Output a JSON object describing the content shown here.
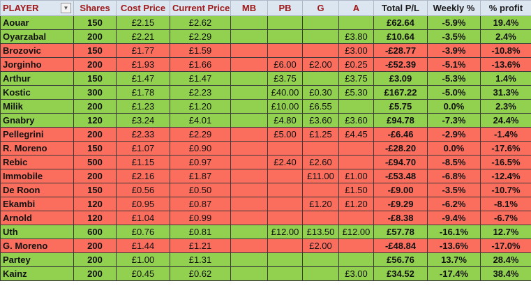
{
  "headers": [
    "PLAYER",
    "Shares",
    "Cost Price",
    "Current Price",
    "MB",
    "PB",
    "G",
    "A",
    "Total P/L",
    "Weekly %",
    "% profit"
  ],
  "colors": {
    "profit": "#92d050",
    "loss": "#fb6e5e",
    "header": "#dce6f1"
  },
  "rows": [
    [
      "Aouar",
      "150",
      "£2.15",
      "£2.62",
      "",
      "",
      "",
      "",
      "£62.64",
      "-5.9%",
      "19.4%",
      "green"
    ],
    [
      "Oyarzabal",
      "200",
      "£2.21",
      "£2.29",
      "",
      "",
      "",
      "£3.80",
      "£10.64",
      "-3.5%",
      "2.4%",
      "green"
    ],
    [
      "Brozovic",
      "150",
      "£1.77",
      "£1.59",
      "",
      "",
      "",
      "£3.00",
      "-£28.77",
      "-3.9%",
      "-10.8%",
      "red"
    ],
    [
      "Jorginho",
      "200",
      "£1.93",
      "£1.66",
      "",
      "£6.00",
      "£2.00",
      "£0.25",
      "-£52.39",
      "-5.1%",
      "-13.6%",
      "red"
    ],
    [
      "Arthur",
      "150",
      "£1.47",
      "£1.47",
      "",
      "£3.75",
      "",
      "£3.75",
      "£3.09",
      "-5.3%",
      "1.4%",
      "green"
    ],
    [
      "Kostic",
      "300",
      "£1.78",
      "£2.23",
      "",
      "£40.00",
      "£0.30",
      "£5.30",
      "£167.22",
      "-5.0%",
      "31.3%",
      "green"
    ],
    [
      "Milik",
      "200",
      "£1.23",
      "£1.20",
      "",
      "£10.00",
      "£6.55",
      "",
      "£5.75",
      "0.0%",
      "2.3%",
      "green"
    ],
    [
      "Gnabry",
      "120",
      "£3.24",
      "£4.01",
      "",
      "£4.80",
      "£3.60",
      "£3.60",
      "£94.78",
      "-7.3%",
      "24.4%",
      "green"
    ],
    [
      "Pellegrini",
      "200",
      "£2.33",
      "£2.29",
      "",
      "£5.00",
      "£1.25",
      "£4.45",
      "-£6.46",
      "-2.9%",
      "-1.4%",
      "red"
    ],
    [
      "R. Moreno",
      "150",
      "£1.07",
      "£0.90",
      "",
      "",
      "",
      "",
      "-£28.20",
      "0.0%",
      "-17.6%",
      "red"
    ],
    [
      "Rebic",
      "500",
      "£1.15",
      "£0.97",
      "",
      "£2.40",
      "£2.60",
      "",
      "-£94.70",
      "-8.5%",
      "-16.5%",
      "red"
    ],
    [
      "Immobile",
      "200",
      "£2.16",
      "£1.87",
      "",
      "",
      "£11.00",
      "£1.00",
      "-£53.48",
      "-6.8%",
      "-12.4%",
      "red"
    ],
    [
      "De Roon",
      "150",
      "£0.56",
      "£0.50",
      "",
      "",
      "",
      "£1.50",
      "-£9.00",
      "-3.5%",
      "-10.7%",
      "red"
    ],
    [
      "Ekambi",
      "120",
      "£0.95",
      "£0.87",
      "",
      "",
      "£1.20",
      "£1.20",
      "-£9.29",
      "-6.2%",
      "-8.1%",
      "red"
    ],
    [
      "Arnold",
      "120",
      "£1.04",
      "£0.99",
      "",
      "",
      "",
      "",
      "-£8.38",
      "-9.4%",
      "-6.7%",
      "red"
    ],
    [
      "Uth",
      "600",
      "£0.76",
      "£0.81",
      "",
      "£12.00",
      "£13.50",
      "£12.00",
      "£57.78",
      "-16.1%",
      "12.7%",
      "green"
    ],
    [
      "G. Moreno",
      "200",
      "£1.44",
      "£1.21",
      "",
      "",
      "£2.00",
      "",
      "-£48.84",
      "-13.6%",
      "-17.0%",
      "red"
    ],
    [
      "Partey",
      "200",
      "£1.00",
      "£1.31",
      "",
      "",
      "",
      "",
      "£56.76",
      "13.7%",
      "28.4%",
      "green"
    ],
    [
      "Kainz",
      "200",
      "£0.45",
      "£0.62",
      "",
      "",
      "",
      "£3.00",
      "£34.52",
      "-17.4%",
      "38.4%",
      "green"
    ]
  ]
}
